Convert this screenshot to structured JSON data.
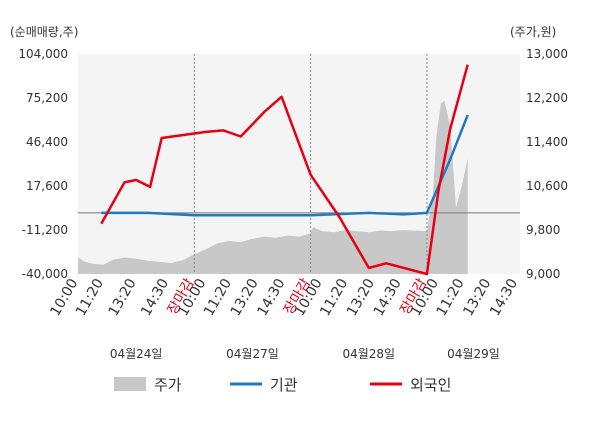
{
  "chart_data": {
    "type": "line",
    "left_unit": "(순매매량,주)",
    "right_unit": "(주가,원)",
    "left_ticks": [
      "104,000",
      "75,200",
      "46,400",
      "17,600",
      "-11,200",
      "-40,000"
    ],
    "left_range": [
      -40000,
      104000
    ],
    "right_ticks": [
      "13,000",
      "12,200",
      "11,400",
      "10,600",
      "9,800",
      "9,000"
    ],
    "right_range": [
      9000,
      13000
    ],
    "x_ticks": [
      {
        "label": "10:00",
        "color": "#333333",
        "day": 0,
        "frac": 0.0
      },
      {
        "label": "11:20",
        "color": "#333333",
        "day": 0,
        "frac": 0.22
      },
      {
        "label": "13:20",
        "color": "#333333",
        "day": 0,
        "frac": 0.5
      },
      {
        "label": "14:30",
        "color": "#333333",
        "day": 0,
        "frac": 0.78
      },
      {
        "label": "장마감",
        "color": "#e60012",
        "day": 0,
        "frac": 1.0
      },
      {
        "label": "10:00",
        "color": "#333333",
        "day": 1,
        "frac": 0.1
      },
      {
        "label": "11:20",
        "color": "#333333",
        "day": 1,
        "frac": 0.32
      },
      {
        "label": "13:20",
        "color": "#333333",
        "day": 1,
        "frac": 0.55
      },
      {
        "label": "14:30",
        "color": "#333333",
        "day": 1,
        "frac": 0.78
      },
      {
        "label": "장마감",
        "color": "#e60012",
        "day": 1,
        "frac": 1.0
      },
      {
        "label": "10:00",
        "color": "#333333",
        "day": 2,
        "frac": 0.1
      },
      {
        "label": "11:20",
        "color": "#333333",
        "day": 2,
        "frac": 0.32
      },
      {
        "label": "13:20",
        "color": "#333333",
        "day": 2,
        "frac": 0.55
      },
      {
        "label": "14:30",
        "color": "#333333",
        "day": 2,
        "frac": 0.78
      },
      {
        "label": "장마감",
        "color": "#e60012",
        "day": 2,
        "frac": 1.0
      },
      {
        "label": "10:00",
        "color": "#333333",
        "day": 3,
        "frac": 0.1
      },
      {
        "label": "11:20",
        "color": "#333333",
        "day": 3,
        "frac": 0.32
      },
      {
        "label": "13:20",
        "color": "#333333",
        "day": 3,
        "frac": 0.55
      },
      {
        "label": "14:30",
        "color": "#333333",
        "day": 3,
        "frac": 0.78
      }
    ],
    "days": [
      "04월24일",
      "04월27일",
      "04월28일",
      "04월29일"
    ],
    "series": [
      {
        "name": "기관",
        "color": "#1f7ac1",
        "axis": "left",
        "x": [
          0.2,
          0.6,
          1.0,
          1.5,
          2.0,
          2.5,
          2.8,
          3.0,
          3.2,
          3.35
        ],
        "values": [
          0,
          0,
          -1500,
          -1500,
          -1500,
          0,
          -1000,
          0,
          35000,
          64000
        ]
      },
      {
        "name": "외국인",
        "color": "#e60012",
        "axis": "left",
        "x": [
          0.2,
          0.4,
          0.5,
          0.62,
          0.72,
          1.1,
          1.25,
          1.4,
          1.6,
          1.75,
          2.0,
          2.25,
          2.5,
          2.65,
          3.0,
          3.1,
          3.2,
          3.35
        ],
        "values": [
          -7000,
          20000,
          21500,
          17000,
          49000,
          53000,
          54000,
          50000,
          66000,
          76000,
          25000,
          -3000,
          -36000,
          -33000,
          -40000,
          15000,
          55000,
          97000
        ]
      }
    ],
    "price": {
      "name": "주가",
      "color": "#c8c8c8",
      "axis": "right",
      "x": [
        0.0,
        0.05,
        0.1,
        0.15,
        0.22,
        0.3,
        0.4,
        0.5,
        0.6,
        0.7,
        0.8,
        0.9,
        1.0,
        1.1,
        1.2,
        1.3,
        1.4,
        1.5,
        1.6,
        1.7,
        1.8,
        1.9,
        2.0,
        2.02,
        2.1,
        2.2,
        2.3,
        2.4,
        2.5,
        2.6,
        2.7,
        2.8,
        2.9,
        3.0,
        3.05,
        3.08,
        3.12,
        3.15,
        3.2,
        3.25,
        3.3,
        3.35
      ],
      "values": [
        9300,
        9230,
        9200,
        9180,
        9170,
        9260,
        9300,
        9280,
        9240,
        9220,
        9200,
        9250,
        9360,
        9450,
        9560,
        9600,
        9580,
        9640,
        9680,
        9660,
        9700,
        9680,
        9740,
        9850,
        9780,
        9760,
        9800,
        9780,
        9760,
        9790,
        9780,
        9800,
        9790,
        9780,
        10400,
        11500,
        12100,
        12150,
        11700,
        10200,
        10600,
        11100
      ]
    }
  },
  "legend": [
    {
      "label": "주가",
      "color": "#c8c8c8",
      "kind": "box"
    },
    {
      "label": "기관",
      "color": "#1f7ac1",
      "kind": "line"
    },
    {
      "label": "외국인",
      "color": "#e60012",
      "kind": "line"
    }
  ]
}
